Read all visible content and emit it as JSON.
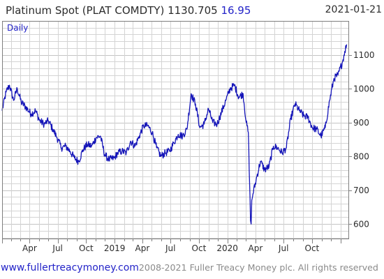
{
  "header": {
    "title": "Platinum Spot (PLAT COMDTY)",
    "last_price": "1130.705",
    "change": "16.95",
    "date": "2021-01-21"
  },
  "footer": {
    "site": "www.fullertreacymoney.com",
    "copyright": "2008-2021 Fuller Treacy Money plc. All rights reserved"
  },
  "colors": {
    "line": "#1414b8",
    "grid": "#d4d4d4",
    "frame": "#7f7f7f",
    "accent_blue": "#2323c8",
    "text": "#2b2b2b",
    "footer_gray": "#8a8a8a"
  },
  "chart_data": {
    "type": "line",
    "title": "Platinum Spot (PLAT COMDTY)",
    "interval_label": "Daily",
    "y_axis_side": "right",
    "ylim": [
      555,
      1200
    ],
    "yticks": [
      600,
      700,
      800,
      900,
      1000,
      1100
    ],
    "xlim": [
      "2018-01-02",
      "2021-01-29"
    ],
    "xticks": [
      {
        "date": "2018-01-01",
        "label": ""
      },
      {
        "date": "2018-04-01",
        "label": "Apr"
      },
      {
        "date": "2018-07-01",
        "label": "Jul"
      },
      {
        "date": "2018-10-01",
        "label": "Oct"
      },
      {
        "date": "2019-01-01",
        "label": "2019"
      },
      {
        "date": "2019-04-01",
        "label": "Apr"
      },
      {
        "date": "2019-07-01",
        "label": "Jul"
      },
      {
        "date": "2019-10-01",
        "label": "Oct"
      },
      {
        "date": "2020-01-01",
        "label": "2020"
      },
      {
        "date": "2020-04-01",
        "label": "Apr"
      },
      {
        "date": "2020-07-01",
        "label": "Jul"
      },
      {
        "date": "2020-10-01",
        "label": "Oct"
      },
      {
        "date": "2021-01-01",
        "label": ""
      }
    ],
    "grid": true,
    "series": [
      {
        "values": [
          [
            "2018-01-02",
            935
          ],
          [
            "2018-01-15",
            990
          ],
          [
            "2018-01-26",
            1010
          ],
          [
            "2018-02-08",
            965
          ],
          [
            "2018-02-20",
            1000
          ],
          [
            "2018-03-05",
            960
          ],
          [
            "2018-03-20",
            945
          ],
          [
            "2018-04-06",
            925
          ],
          [
            "2018-04-20",
            935
          ],
          [
            "2018-05-04",
            905
          ],
          [
            "2018-05-18",
            895
          ],
          [
            "2018-06-01",
            905
          ],
          [
            "2018-06-15",
            880
          ],
          [
            "2018-06-29",
            855
          ],
          [
            "2018-07-13",
            825
          ],
          [
            "2018-07-27",
            830
          ],
          [
            "2018-08-10",
            815
          ],
          [
            "2018-08-24",
            795
          ],
          [
            "2018-09-07",
            785
          ],
          [
            "2018-09-21",
            820
          ],
          [
            "2018-10-05",
            835
          ],
          [
            "2018-10-19",
            830
          ],
          [
            "2018-11-02",
            855
          ],
          [
            "2018-11-16",
            860
          ],
          [
            "2018-11-30",
            805
          ],
          [
            "2018-12-14",
            790
          ],
          [
            "2018-12-31",
            795
          ],
          [
            "2019-01-11",
            810
          ],
          [
            "2019-01-25",
            815
          ],
          [
            "2019-02-08",
            810
          ],
          [
            "2019-02-22",
            845
          ],
          [
            "2019-03-08",
            830
          ],
          [
            "2019-03-22",
            860
          ],
          [
            "2019-04-05",
            890
          ],
          [
            "2019-04-19",
            890
          ],
          [
            "2019-05-03",
            870
          ],
          [
            "2019-05-17",
            825
          ],
          [
            "2019-05-31",
            800
          ],
          [
            "2019-06-14",
            810
          ],
          [
            "2019-06-28",
            815
          ],
          [
            "2019-07-12",
            840
          ],
          [
            "2019-07-26",
            865
          ],
          [
            "2019-08-09",
            860
          ],
          [
            "2019-08-23",
            880
          ],
          [
            "2019-09-06",
            985
          ],
          [
            "2019-09-20",
            955
          ],
          [
            "2019-10-04",
            885
          ],
          [
            "2019-10-18",
            895
          ],
          [
            "2019-11-01",
            940
          ],
          [
            "2019-11-15",
            900
          ],
          [
            "2019-11-29",
            895
          ],
          [
            "2019-12-13",
            930
          ],
          [
            "2019-12-27",
            965
          ],
          [
            "2020-01-10",
            1000
          ],
          [
            "2020-01-24",
            1010
          ],
          [
            "2020-02-07",
            975
          ],
          [
            "2020-02-21",
            985
          ],
          [
            "2020-03-02",
            900
          ],
          [
            "2020-03-09",
            870
          ],
          [
            "2020-03-13",
            720
          ],
          [
            "2020-03-16",
            610
          ],
          [
            "2020-03-18",
            600
          ],
          [
            "2020-03-20",
            670
          ],
          [
            "2020-03-24",
            690
          ],
          [
            "2020-04-03",
            730
          ],
          [
            "2020-04-17",
            785
          ],
          [
            "2020-05-01",
            760
          ],
          [
            "2020-05-15",
            770
          ],
          [
            "2020-05-29",
            830
          ],
          [
            "2020-06-12",
            825
          ],
          [
            "2020-06-26",
            810
          ],
          [
            "2020-07-10",
            825
          ],
          [
            "2020-07-24",
            910
          ],
          [
            "2020-08-07",
            955
          ],
          [
            "2020-08-21",
            935
          ],
          [
            "2020-09-04",
            920
          ],
          [
            "2020-09-18",
            915
          ],
          [
            "2020-10-02",
            885
          ],
          [
            "2020-10-16",
            880
          ],
          [
            "2020-10-30",
            860
          ],
          [
            "2020-11-13",
            885
          ],
          [
            "2020-11-27",
            965
          ],
          [
            "2020-12-11",
            1030
          ],
          [
            "2020-12-24",
            1040
          ],
          [
            "2021-01-08",
            1080
          ],
          [
            "2021-01-15",
            1110
          ],
          [
            "2021-01-21",
            1130.705
          ]
        ]
      }
    ]
  }
}
